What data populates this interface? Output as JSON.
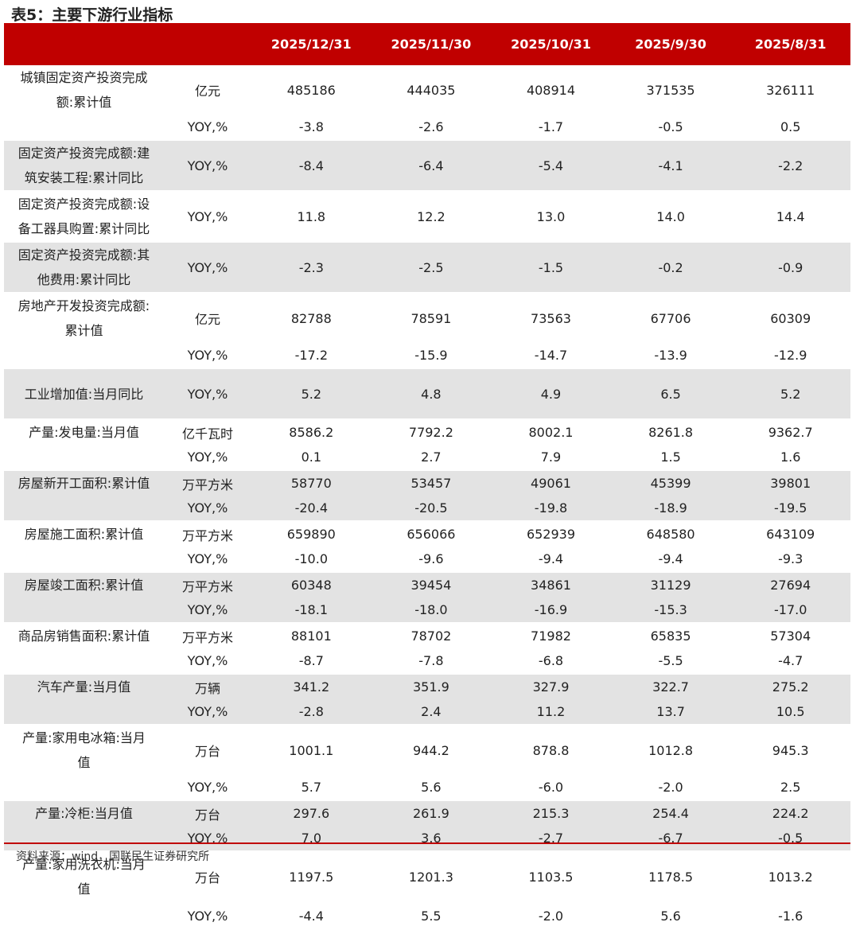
{
  "title": "表5：主要下游行业指标",
  "headers": [
    "",
    "",
    "2025/12/31",
    "2025/11/30",
    "2025/10/31",
    "2025/9/30",
    "2025/8/31"
  ],
  "groups": [
    {
      "name": "城镇固定资产投资完成额:累计值",
      "rows": [
        {
          "unit": "亿元",
          "values": [
            "485186",
            "444035",
            "408914",
            "371535",
            "326111"
          ]
        },
        {
          "unit": "YOY,%",
          "values": [
            "-3.8",
            "-2.6",
            "-1.7",
            "-0.5",
            "0.5"
          ]
        }
      ]
    },
    {
      "name": "固定资产投资完成额:建筑安装工程:累计同比",
      "rows": [
        {
          "unit": "YOY,%",
          "values": [
            "-8.4",
            "-6.4",
            "-5.4",
            "-4.1",
            "-2.2"
          ]
        }
      ]
    },
    {
      "name": "固定资产投资完成额:设备工器具购置:累计同比",
      "rows": [
        {
          "unit": "YOY,%",
          "values": [
            "11.8",
            "12.2",
            "13.0",
            "14.0",
            "14.4"
          ]
        }
      ]
    },
    {
      "name": "固定资产投资完成额:其他费用:累计同比",
      "rows": [
        {
          "unit": "YOY,%",
          "values": [
            "-2.3",
            "-2.5",
            "-1.5",
            "-0.2",
            "-0.9"
          ]
        }
      ]
    },
    {
      "name": "房地产开发投资完成额:累计值",
      "rows": [
        {
          "unit": "亿元",
          "values": [
            "82788",
            "78591",
            "73563",
            "67706",
            "60309"
          ]
        },
        {
          "unit": "YOY,%",
          "values": [
            "-17.2",
            "-15.9",
            "-14.7",
            "-13.9",
            "-12.9"
          ]
        }
      ]
    },
    {
      "name": "工业增加值:当月同比",
      "rows": [
        {
          "unit": "YOY,%",
          "values": [
            "5.2",
            "4.8",
            "4.9",
            "6.5",
            "5.2"
          ]
        }
      ]
    },
    {
      "name": "产量:发电量:当月值",
      "rows": [
        {
          "unit": "亿千瓦时",
          "values": [
            "8586.2",
            "7792.2",
            "8002.1",
            "8261.8",
            "9362.7"
          ]
        },
        {
          "unit": "YOY,%",
          "values": [
            "0.1",
            "2.7",
            "7.9",
            "1.5",
            "1.6"
          ]
        }
      ]
    },
    {
      "name": "房屋新开工面积:累计值",
      "rows": [
        {
          "unit": "万平方米",
          "values": [
            "58770",
            "53457",
            "49061",
            "45399",
            "39801"
          ]
        },
        {
          "unit": "YOY,%",
          "values": [
            "-20.4",
            "-20.5",
            "-19.8",
            "-18.9",
            "-19.5"
          ]
        }
      ]
    },
    {
      "name": "房屋施工面积:累计值",
      "rows": [
        {
          "unit": "万平方米",
          "values": [
            "659890",
            "656066",
            "652939",
            "648580",
            "643109"
          ]
        },
        {
          "unit": "YOY,%",
          "values": [
            "-10.0",
            "-9.6",
            "-9.4",
            "-9.4",
            "-9.3"
          ]
        }
      ]
    },
    {
      "name": "房屋竣工面积:累计值",
      "rows": [
        {
          "unit": "万平方米",
          "values": [
            "60348",
            "39454",
            "34861",
            "31129",
            "27694"
          ]
        },
        {
          "unit": "YOY,%",
          "values": [
            "-18.1",
            "-18.0",
            "-16.9",
            "-15.3",
            "-17.0"
          ]
        }
      ]
    },
    {
      "name": "商品房销售面积:累计值",
      "rows": [
        {
          "unit": "万平方米",
          "values": [
            "88101",
            "78702",
            "71982",
            "65835",
            "57304"
          ]
        },
        {
          "unit": "YOY,%",
          "values": [
            "-8.7",
            "-7.8",
            "-6.8",
            "-5.5",
            "-4.7"
          ]
        }
      ]
    },
    {
      "name": "汽车产量:当月值",
      "rows": [
        {
          "unit": "万辆",
          "values": [
            "341.2",
            "351.9",
            "327.9",
            "322.7",
            "275.2"
          ]
        },
        {
          "unit": "YOY,%",
          "values": [
            "-2.8",
            "2.4",
            "11.2",
            "13.7",
            "10.5"
          ]
        }
      ]
    },
    {
      "name": "产量:家用电冰箱:当月值",
      "rows": [
        {
          "unit": "万台",
          "values": [
            "1001.1",
            "944.2",
            "878.8",
            "1012.8",
            "945.3"
          ]
        },
        {
          "unit": "YOY,%",
          "values": [
            "5.7",
            "5.6",
            "-6.0",
            "-2.0",
            "2.5"
          ]
        }
      ]
    },
    {
      "name": "产量:冷柜:当月值",
      "rows": [
        {
          "unit": "万台",
          "values": [
            "297.6",
            "261.9",
            "215.3",
            "254.4",
            "224.2"
          ]
        },
        {
          "unit": "YOY,%",
          "values": [
            "7.0",
            "3.6",
            "-2.7",
            "-6.7",
            "-0.5"
          ]
        }
      ]
    },
    {
      "name": "产量:家用洗衣机:当月值",
      "rows": [
        {
          "unit": "万台",
          "values": [
            "1197.5",
            "1201.3",
            "1103.5",
            "1178.5",
            "1013.2"
          ]
        },
        {
          "unit": "YOY,%",
          "values": [
            "-4.4",
            "5.5",
            "-2.0",
            "5.6",
            "-1.6"
          ]
        }
      ]
    }
  ],
  "source": "资料来源：wind，国联民生证券研究所"
}
